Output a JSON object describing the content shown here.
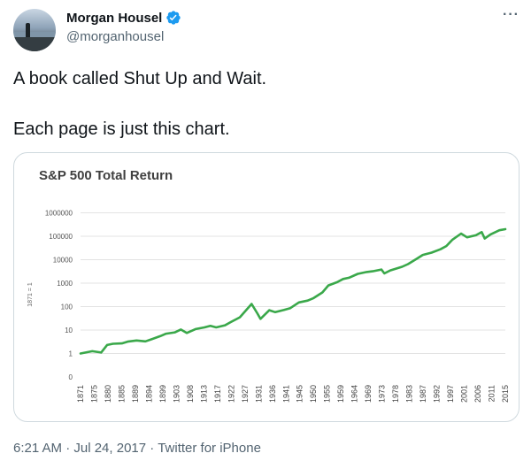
{
  "tweet": {
    "display_name": "Morgan Housel",
    "handle": "@morganhousel",
    "more_label": "···",
    "line1": "A book called Shut Up and Wait.",
    "line2": "Each page is just this chart.",
    "timestamp": "6:21 AM · Jul 24, 2017",
    "source": "Twitter for iPhone",
    "verified_color": "#1d9bf0",
    "icons": [
      "verified-badge-icon",
      "more-icon"
    ]
  },
  "chart_data": {
    "type": "line",
    "title": "S&P 500 Total Return",
    "ylabel": "1871 = 1",
    "y_scale": "log",
    "y_ticks": [
      "0",
      "1",
      "10",
      "100",
      "1000",
      "10000",
      "100000",
      "1000000"
    ],
    "x_ticks": [
      "1871",
      "1875",
      "1880",
      "1885",
      "1889",
      "1894",
      "1899",
      "1903",
      "1908",
      "1913",
      "1917",
      "1922",
      "1927",
      "1931",
      "1936",
      "1941",
      "1945",
      "1950",
      "1955",
      "1959",
      "1964",
      "1969",
      "1973",
      "1978",
      "1983",
      "1987",
      "1992",
      "1997",
      "2001",
      "2006",
      "2011",
      "2015"
    ],
    "grid": true,
    "line_color": "#3aa84a",
    "series": [
      {
        "x": [
          1871,
          1875,
          1878,
          1880,
          1882,
          1885,
          1887,
          1890,
          1893,
          1895,
          1898,
          1900,
          1903,
          1905,
          1907,
          1910,
          1913,
          1915,
          1917,
          1920,
          1922,
          1925,
          1929,
          1931,
          1932,
          1935,
          1937,
          1940,
          1942,
          1945,
          1948,
          1950,
          1953,
          1955,
          1958,
          1960,
          1962,
          1965,
          1968,
          1970,
          1973,
          1974,
          1976,
          1980,
          1982,
          1985,
          1987,
          1990,
          1993,
          1995,
          1997,
          2000,
          2002,
          2005,
          2007,
          2008,
          2010,
          2013,
          2015
        ],
        "y": [
          1,
          1.25,
          1.1,
          2.3,
          2.6,
          2.7,
          3.2,
          3.6,
          3.3,
          4,
          5.5,
          7,
          8,
          10.5,
          7.5,
          11,
          13,
          15,
          13,
          16,
          22,
          35,
          130,
          50,
          30,
          70,
          58,
          72,
          85,
          150,
          180,
          230,
          400,
          800,
          1100,
          1500,
          1700,
          2500,
          3000,
          3200,
          3800,
          2600,
          3500,
          5000,
          6500,
          11000,
          16000,
          20000,
          28000,
          38000,
          70000,
          130000,
          90000,
          110000,
          150000,
          80000,
          120000,
          180000,
          200000
        ]
      }
    ]
  }
}
